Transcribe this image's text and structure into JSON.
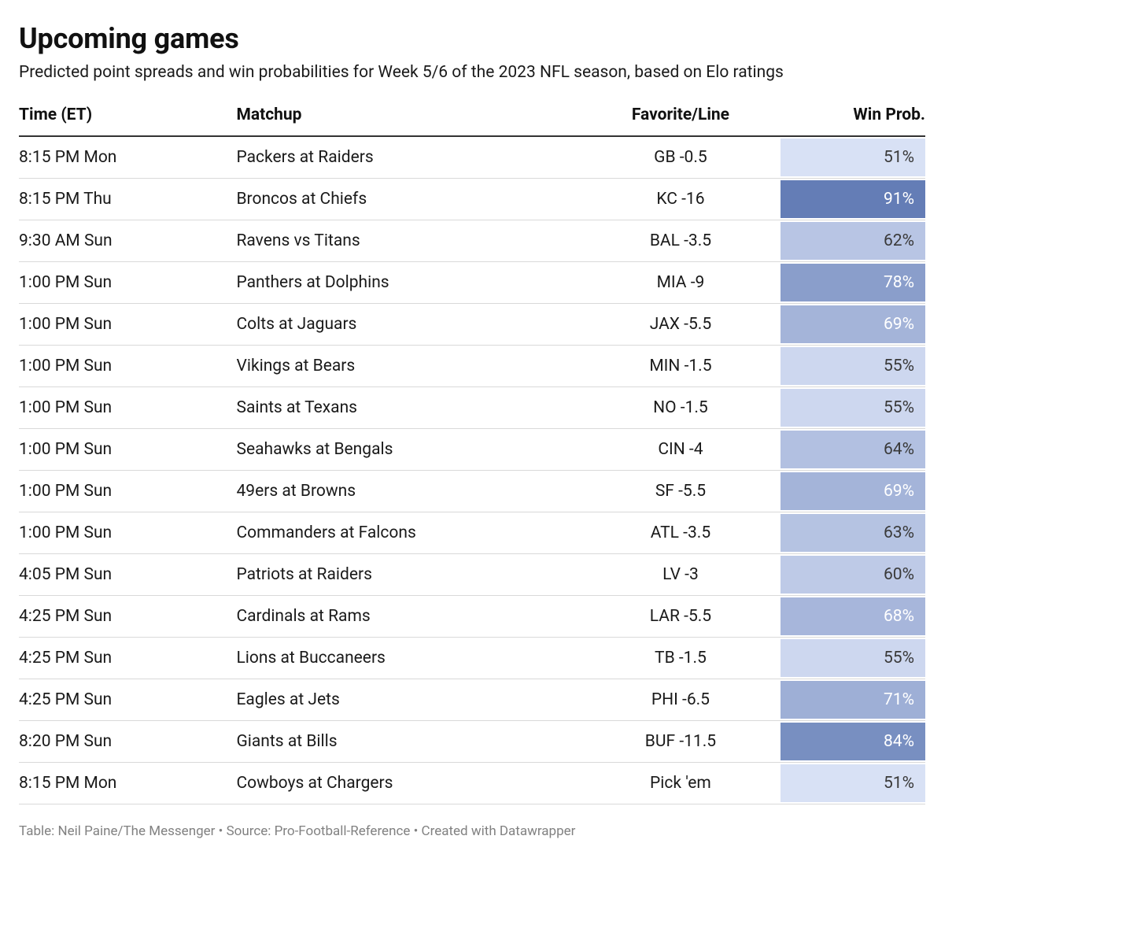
{
  "title": "Upcoming games",
  "subtitle": "Predicted point spreads and win probabilities for Week 5/6 of the 2023 NFL season, based on Elo ratings",
  "columns": {
    "time": "Time (ET)",
    "matchup": "Matchup",
    "favorite": "Favorite/Line",
    "winprob": "Win Prob."
  },
  "prob_scale": {
    "min": 50,
    "max": 100,
    "low_color": "#dbe3f7",
    "high_color": "#4a67a8",
    "text_threshold": 66,
    "dark_text": "#3a3a3a",
    "light_text": "#ffffff"
  },
  "rows": [
    {
      "time": "8:15 PM Mon",
      "matchup": "Packers at Raiders",
      "favorite": "GB -0.5",
      "prob": 51
    },
    {
      "time": "8:15 PM Thu",
      "matchup": "Broncos at Chiefs",
      "favorite": "KC -16",
      "prob": 91
    },
    {
      "time": "9:30 AM Sun",
      "matchup": "Ravens vs Titans",
      "favorite": "BAL -3.5",
      "prob": 62
    },
    {
      "time": "1:00 PM Sun",
      "matchup": "Panthers at Dolphins",
      "favorite": "MIA -9",
      "prob": 78
    },
    {
      "time": "1:00 PM Sun",
      "matchup": "Colts at Jaguars",
      "favorite": "JAX -5.5",
      "prob": 69
    },
    {
      "time": "1:00 PM Sun",
      "matchup": "Vikings at Bears",
      "favorite": "MIN -1.5",
      "prob": 55
    },
    {
      "time": "1:00 PM Sun",
      "matchup": "Saints at Texans",
      "favorite": "NO -1.5",
      "prob": 55
    },
    {
      "time": "1:00 PM Sun",
      "matchup": "Seahawks at Bengals",
      "favorite": "CIN -4",
      "prob": 64
    },
    {
      "time": "1:00 PM Sun",
      "matchup": "49ers at Browns",
      "favorite": "SF -5.5",
      "prob": 69
    },
    {
      "time": "1:00 PM Sun",
      "matchup": "Commanders at Falcons",
      "favorite": "ATL -3.5",
      "prob": 63
    },
    {
      "time": "4:05 PM Sun",
      "matchup": "Patriots at Raiders",
      "favorite": "LV -3",
      "prob": 60
    },
    {
      "time": "4:25 PM Sun",
      "matchup": "Cardinals at Rams",
      "favorite": "LAR -5.5",
      "prob": 68
    },
    {
      "time": "4:25 PM Sun",
      "matchup": "Lions at Buccaneers",
      "favorite": "TB -1.5",
      "prob": 55
    },
    {
      "time": "4:25 PM Sun",
      "matchup": "Eagles at Jets",
      "favorite": "PHI -6.5",
      "prob": 71
    },
    {
      "time": "8:20 PM Sun",
      "matchup": "Giants at Bills",
      "favorite": "BUF -11.5",
      "prob": 84
    },
    {
      "time": "8:15 PM Mon",
      "matchup": "Cowboys at Chargers",
      "favorite": "Pick 'em",
      "prob": 51
    }
  ],
  "footer": "Table: Neil Paine/The Messenger • Source: Pro-Football-Reference • Created with Datawrapper"
}
